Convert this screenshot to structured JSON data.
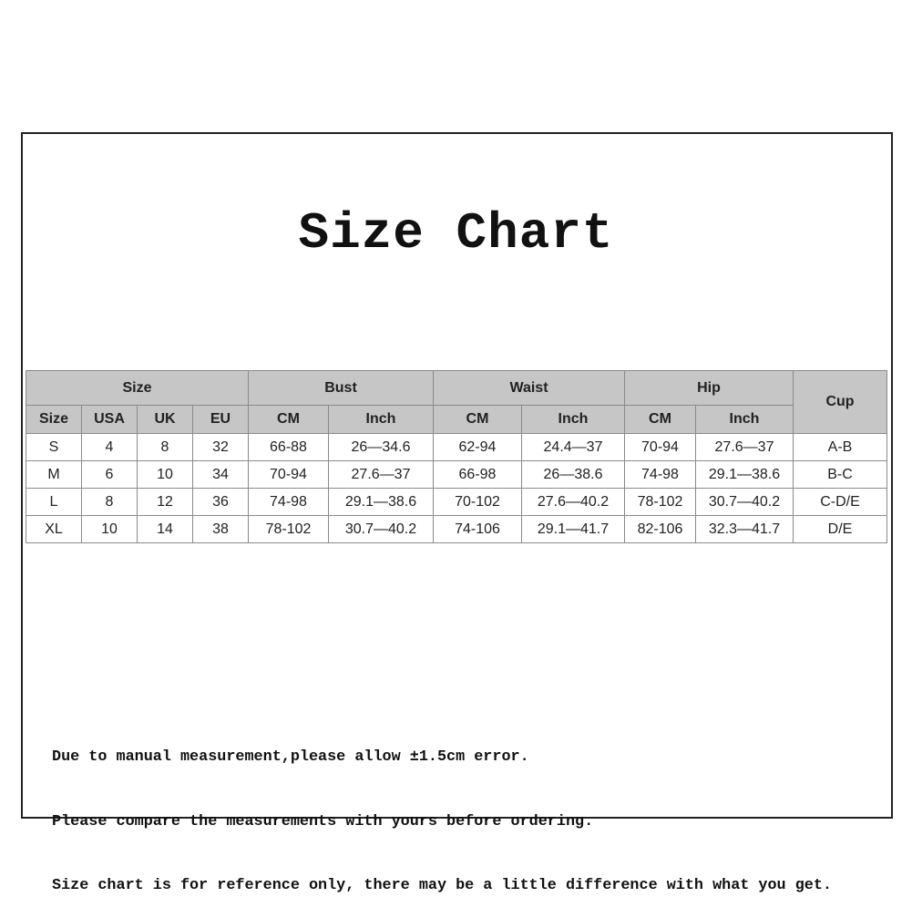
{
  "title": "Size Chart",
  "table": {
    "group_headers": [
      "Size",
      "Bust",
      "Waist",
      "Hip",
      "Cup"
    ],
    "sub_headers": [
      "Size",
      "USA",
      "UK",
      "EU",
      "CM",
      "Inch",
      "CM",
      "Inch",
      "CM",
      "Inch"
    ],
    "rows": [
      [
        "S",
        "4",
        "8",
        "32",
        "66-88",
        "26—34.6",
        "62-94",
        "24.4—37",
        "70-94",
        "27.6—37",
        "A-B"
      ],
      [
        "M",
        "6",
        "10",
        "34",
        "70-94",
        "27.6—37",
        "66-98",
        "26—38.6",
        "74-98",
        "29.1—38.6",
        "B-C"
      ],
      [
        "L",
        "8",
        "12",
        "36",
        "74-98",
        "29.1—38.6",
        "70-102",
        "27.6—40.2",
        "78-102",
        "30.7—40.2",
        "C-D/E"
      ],
      [
        "XL",
        "10",
        "14",
        "38",
        "78-102",
        "30.7—40.2",
        "74-106",
        "29.1—41.7",
        "82-106",
        "32.3—41.7",
        "D/E"
      ]
    ]
  },
  "notes": [
    "Due to manual measurement,please allow ±1.5cm error.",
    "Please compare the measurements with yours before ordering.",
    "Size chart is for reference only, there may be a little difference with what you get."
  ]
}
